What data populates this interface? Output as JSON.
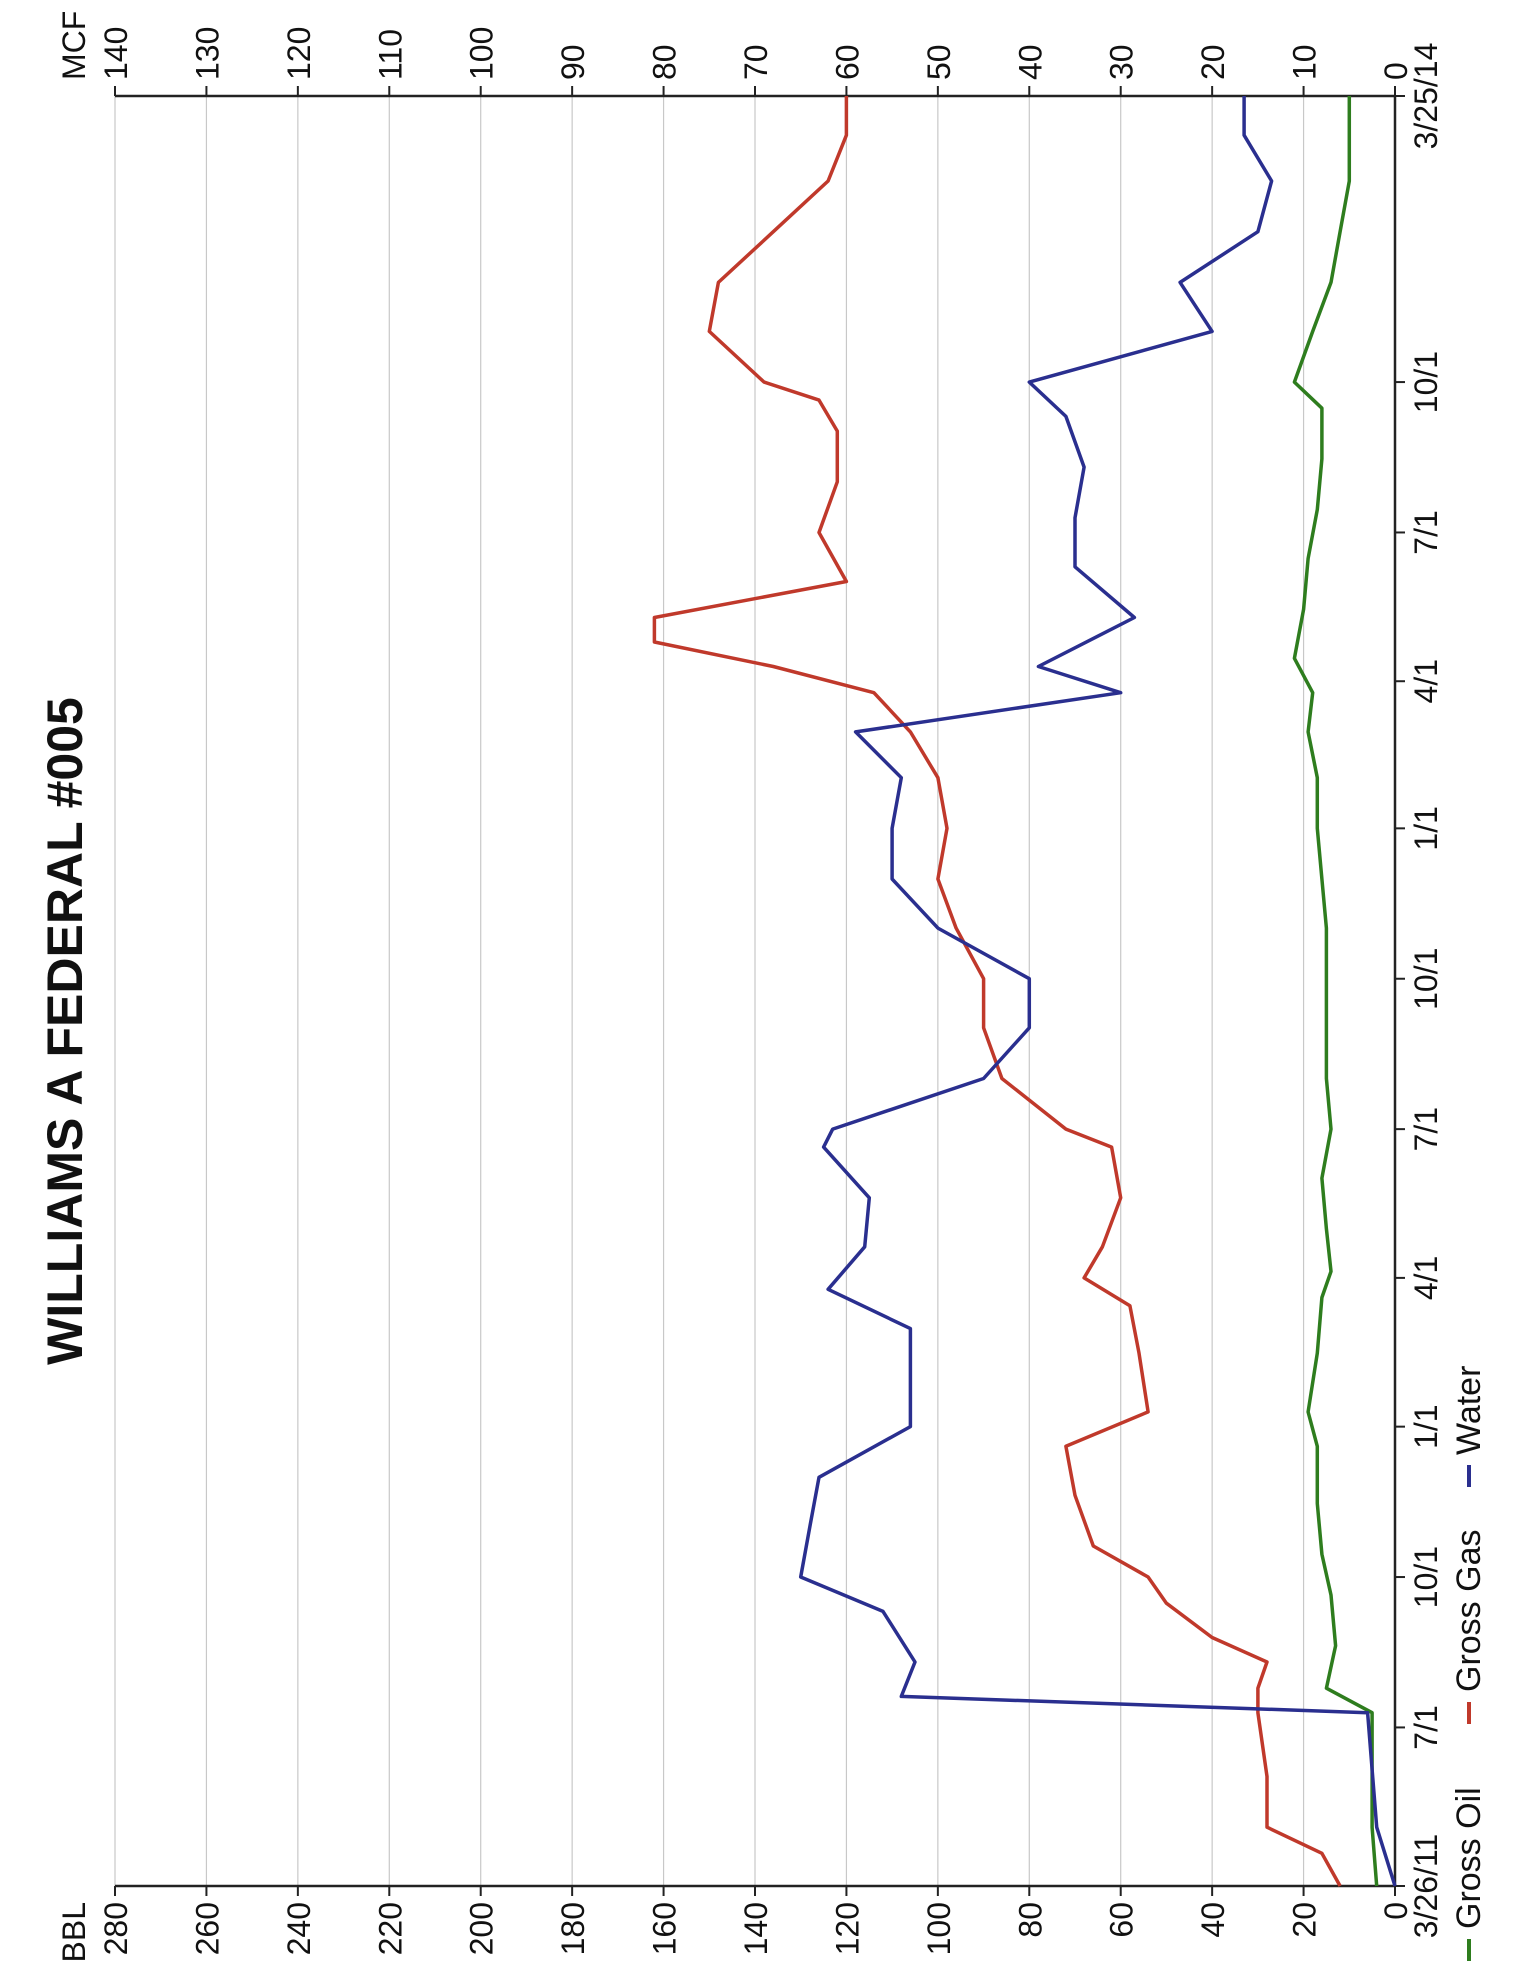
{
  "chart_data": {
    "type": "line",
    "title": "WILLIAMS A FEDERAL #005",
    "left_axis": {
      "label": "BBL",
      "ticks": [
        "0",
        "20",
        "40",
        "60",
        "80",
        "100",
        "120",
        "140",
        "160",
        "180",
        "200",
        "220",
        "240",
        "260",
        "280"
      ],
      "range": [
        0,
        280
      ]
    },
    "right_axis": {
      "label": "MCF",
      "ticks": [
        "0",
        "10",
        "20",
        "30",
        "40",
        "50",
        "60",
        "70",
        "80",
        "90",
        "100",
        "110",
        "120",
        "130",
        "140"
      ],
      "range": [
        0,
        140
      ]
    },
    "x_axis": {
      "range": [
        "2011-03-26",
        "2014-03-25"
      ],
      "ticks": [
        {
          "date": "2011-03-26",
          "label": "3/26/11"
        },
        {
          "date": "2011-07-01",
          "label": "7/1"
        },
        {
          "date": "2011-10-01",
          "label": "10/1"
        },
        {
          "date": "2012-01-01",
          "label": "1/1"
        },
        {
          "date": "2012-04-01",
          "label": "4/1"
        },
        {
          "date": "2012-07-01",
          "label": "7/1"
        },
        {
          "date": "2012-10-01",
          "label": "10/1"
        },
        {
          "date": "2013-01-01",
          "label": "1/1"
        },
        {
          "date": "2013-04-01",
          "label": "4/1"
        },
        {
          "date": "2013-07-01",
          "label": "7/1"
        },
        {
          "date": "2013-10-01",
          "label": "10/1"
        },
        {
          "date": "2014-03-25",
          "label": "3/25/14"
        }
      ]
    },
    "grid": true,
    "legend_position": "bottom-left",
    "series": [
      {
        "name": "Gross Oil",
        "color": "#2e7d1e",
        "axis": "BBL",
        "points": [
          [
            "2011-03-26",
            4
          ],
          [
            "2011-05-01",
            5
          ],
          [
            "2011-07-10",
            5
          ],
          [
            "2011-07-25",
            15
          ],
          [
            "2011-08-20",
            13
          ],
          [
            "2011-09-20",
            14
          ],
          [
            "2011-10-15",
            16
          ],
          [
            "2011-11-15",
            17
          ],
          [
            "2011-12-20",
            17
          ],
          [
            "2012-01-10",
            19
          ],
          [
            "2012-02-15",
            17
          ],
          [
            "2012-03-20",
            16
          ],
          [
            "2012-04-05",
            14
          ],
          [
            "2012-05-01",
            15
          ],
          [
            "2012-06-01",
            16
          ],
          [
            "2012-07-01",
            14
          ],
          [
            "2012-08-01",
            15
          ],
          [
            "2012-09-01",
            15
          ],
          [
            "2012-10-01",
            15
          ],
          [
            "2012-11-01",
            15
          ],
          [
            "2012-12-01",
            16
          ],
          [
            "2013-01-01",
            17
          ],
          [
            "2013-02-01",
            17
          ],
          [
            "2013-03-01",
            19
          ],
          [
            "2013-03-25",
            18
          ],
          [
            "2013-04-15",
            22
          ],
          [
            "2013-05-15",
            20
          ],
          [
            "2013-06-15",
            19
          ],
          [
            "2013-07-15",
            17
          ],
          [
            "2013-08-15",
            16
          ],
          [
            "2013-09-15",
            16
          ],
          [
            "2013-10-01",
            22
          ],
          [
            "2013-11-01",
            18
          ],
          [
            "2013-12-01",
            14
          ],
          [
            "2014-01-01",
            12
          ],
          [
            "2014-02-01",
            10
          ],
          [
            "2014-03-25",
            10
          ]
        ]
      },
      {
        "name": "Gross Gas",
        "color": "#c0392b",
        "axis": "MCF",
        "points": [
          [
            "2011-03-26",
            6
          ],
          [
            "2011-04-15",
            8
          ],
          [
            "2011-05-01",
            14
          ],
          [
            "2011-06-01",
            14
          ],
          [
            "2011-07-10",
            15
          ],
          [
            "2011-07-25",
            15
          ],
          [
            "2011-08-10",
            14
          ],
          [
            "2011-08-25",
            20
          ],
          [
            "2011-09-15",
            25
          ],
          [
            "2011-10-01",
            27
          ],
          [
            "2011-10-20",
            33
          ],
          [
            "2011-11-20",
            35
          ],
          [
            "2011-12-20",
            36
          ],
          [
            "2012-01-10",
            27
          ],
          [
            "2012-02-15",
            28
          ],
          [
            "2012-03-15",
            29
          ],
          [
            "2012-04-01",
            34
          ],
          [
            "2012-04-20",
            32
          ],
          [
            "2012-05-20",
            30
          ],
          [
            "2012-06-20",
            31
          ],
          [
            "2012-07-01",
            36
          ],
          [
            "2012-08-01",
            43
          ],
          [
            "2012-09-01",
            45
          ],
          [
            "2012-10-01",
            45
          ],
          [
            "2012-11-01",
            48
          ],
          [
            "2012-12-01",
            50
          ],
          [
            "2013-01-01",
            49
          ],
          [
            "2013-02-01",
            50
          ],
          [
            "2013-03-01",
            53
          ],
          [
            "2013-03-25",
            57
          ],
          [
            "2013-04-10",
            68
          ],
          [
            "2013-04-25",
            81
          ],
          [
            "2013-05-10",
            81
          ],
          [
            "2013-06-01",
            60
          ],
          [
            "2013-07-01",
            63
          ],
          [
            "2013-08-01",
            61
          ],
          [
            "2013-09-01",
            61
          ],
          [
            "2013-09-20",
            63
          ],
          [
            "2013-10-01",
            69
          ],
          [
            "2013-11-01",
            75
          ],
          [
            "2013-12-01",
            74
          ],
          [
            "2014-01-01",
            68
          ],
          [
            "2014-02-01",
            62
          ],
          [
            "2014-03-01",
            60
          ],
          [
            "2014-03-25",
            60
          ]
        ]
      },
      {
        "name": "Water",
        "color": "#2a2f8f",
        "axis": "BBL",
        "points": [
          [
            "2011-03-26",
            0
          ],
          [
            "2011-05-01",
            4
          ],
          [
            "2011-07-10",
            6
          ],
          [
            "2011-07-20",
            108
          ],
          [
            "2011-08-10",
            105
          ],
          [
            "2011-09-10",
            112
          ],
          [
            "2011-10-01",
            130
          ],
          [
            "2011-11-01",
            128
          ],
          [
            "2011-12-01",
            126
          ],
          [
            "2012-01-01",
            106
          ],
          [
            "2012-02-01",
            106
          ],
          [
            "2012-03-01",
            106
          ],
          [
            "2012-03-25",
            124
          ],
          [
            "2012-04-20",
            116
          ],
          [
            "2012-05-20",
            115
          ],
          [
            "2012-06-20",
            125
          ],
          [
            "2012-07-01",
            123
          ],
          [
            "2012-08-01",
            90
          ],
          [
            "2012-09-01",
            80
          ],
          [
            "2012-10-01",
            80
          ],
          [
            "2012-11-01",
            100
          ],
          [
            "2012-12-01",
            110
          ],
          [
            "2013-01-01",
            110
          ],
          [
            "2013-02-01",
            108
          ],
          [
            "2013-03-01",
            118
          ],
          [
            "2013-03-25",
            60
          ],
          [
            "2013-04-10",
            78
          ],
          [
            "2013-05-10",
            57
          ],
          [
            "2013-06-10",
            70
          ],
          [
            "2013-07-10",
            70
          ],
          [
            "2013-08-10",
            68
          ],
          [
            "2013-09-10",
            72
          ],
          [
            "2013-10-01",
            80
          ],
          [
            "2013-11-01",
            40
          ],
          [
            "2013-12-01",
            47
          ],
          [
            "2014-01-01",
            30
          ],
          [
            "2014-02-01",
            27
          ],
          [
            "2014-03-01",
            33
          ],
          [
            "2014-03-25",
            33
          ]
        ]
      }
    ]
  }
}
